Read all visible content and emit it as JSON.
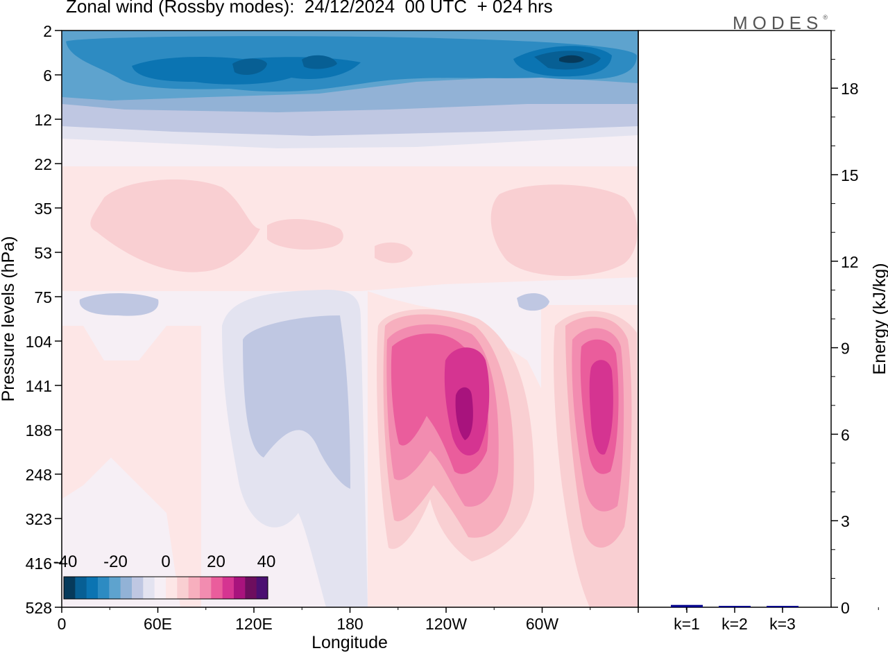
{
  "header": {
    "title": "Zonal wind (Rossby modes):  24/12/2024  00 UTC  + 024 hrs",
    "brand": "MODES",
    "brand_mark": "®"
  },
  "colors": {
    "frame": "#000000",
    "neg_palette": [
      "#063a5b",
      "#075f94",
      "#0b74b2",
      "#2d8bc2",
      "#5ea3ce",
      "#92b2d6",
      "#bfc7e2",
      "#e3e3f0"
    ],
    "zero": "#f6eff5",
    "pos_palette": [
      "#fde6e6",
      "#f9cfd2",
      "#f7afbe",
      "#f28cb0",
      "#ea5d9c",
      "#d53491",
      "#a8137d",
      "#6d0e5e",
      "#4b1071"
    ],
    "bar_color": "#00008b"
  },
  "chart_data": [
    {
      "type": "heatmap",
      "title": "Zonal wind (Rossby modes):  24/12/2024  00 UTC  + 024 hrs",
      "xlabel": "Longitude",
      "ylabel": "Pressure levels (hPa)",
      "x_ticks": [
        "0",
        "60E",
        "120E",
        "180",
        "120W",
        "60W"
      ],
      "y_ticks": [
        "2",
        "6",
        "12",
        "22",
        "35",
        "53",
        "75",
        "104",
        "141",
        "188",
        "248",
        "323",
        "416",
        "528"
      ],
      "colorbar": {
        "ticks": [
          "-40",
          "-20",
          "0",
          "20",
          "40"
        ],
        "range": [
          -40,
          40
        ],
        "step": 5
      },
      "features": [
        {
          "kind": "easterly_jet",
          "level": "6",
          "lon_range": [
            "0",
            "360"
          ],
          "min_value": -35
        },
        {
          "kind": "westerly_max",
          "lon": "130W",
          "level": "141-188",
          "max_value": 35
        },
        {
          "kind": "westerly_max",
          "lon": "40W",
          "level": "141-188",
          "max_value": 30
        },
        {
          "kind": "easterly_min",
          "lon": "150E",
          "level": "104-248",
          "min_value": -10
        }
      ]
    },
    {
      "type": "bar",
      "ylabel": "Energy (kJ/kg)",
      "categories": [
        "k=1",
        "k=2",
        "k=3"
      ],
      "values": [
        0.08,
        0.02,
        0.01
      ],
      "ylim": [
        0,
        20
      ],
      "y_ticks": [
        "0",
        "3",
        "6",
        "9",
        "12",
        "15",
        "18"
      ]
    }
  ]
}
